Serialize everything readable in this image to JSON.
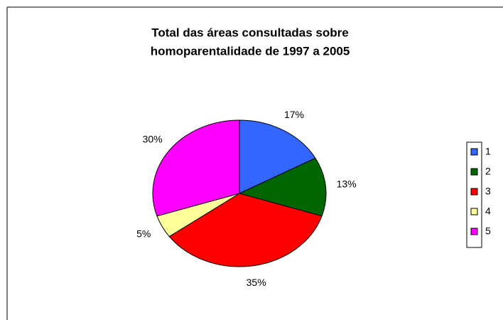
{
  "chart_data": {
    "type": "pie",
    "title": [
      "Total das áreas consultadas sobre",
      "homoparentalidade de 1997 a 2005"
    ],
    "categories": [
      "1",
      "2",
      "3",
      "4",
      "5"
    ],
    "values": [
      17,
      13,
      35,
      5,
      30
    ],
    "value_labels": [
      "17%",
      "13%",
      "35%",
      "5%",
      "30%"
    ],
    "colors": [
      "#3366ff",
      "#006600",
      "#ff0000",
      "#ffff99",
      "#ff00ff"
    ],
    "legend": "right"
  }
}
